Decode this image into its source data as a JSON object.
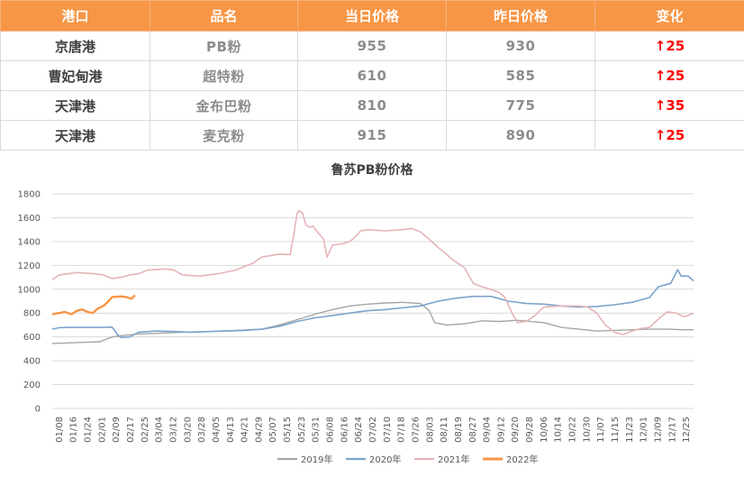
{
  "table": {
    "headers": [
      "港口",
      "品名",
      "当日价格",
      "昨日价格",
      "变化"
    ],
    "rows": [
      {
        "port": "京唐港",
        "product": "PB粉",
        "today": "955",
        "yesterday": "930",
        "change": "↑25"
      },
      {
        "port": "曹妃甸港",
        "product": "超特粉",
        "today": "610",
        "yesterday": "585",
        "change": "↑25"
      },
      {
        "port": "天津港",
        "product": "金布巴粉",
        "today": "810",
        "yesterday": "775",
        "change": "↑35"
      },
      {
        "port": "天津港",
        "product": "麦克粉",
        "today": "915",
        "yesterday": "890",
        "change": "↑25"
      }
    ]
  },
  "chart_data": {
    "type": "line",
    "title": "鲁苏PB粉价格",
    "xlabel": "",
    "ylabel": "",
    "ylim": [
      0,
      1800
    ],
    "yticks": [
      0,
      200,
      400,
      600,
      800,
      1000,
      1200,
      1400,
      1600,
      1800
    ],
    "x_day_range": [
      1,
      365
    ],
    "xticks": [
      "01/08",
      "01/16",
      "01/24",
      "02/01",
      "02/09",
      "02/17",
      "02/25",
      "03/04",
      "03/12",
      "03/20",
      "03/28",
      "04/05",
      "04/13",
      "04/21",
      "04/29",
      "05/07",
      "05/15",
      "05/23",
      "05/31",
      "06/08",
      "06/16",
      "06/24",
      "07/02",
      "07/10",
      "07/18",
      "07/26",
      "08/03",
      "08/11",
      "08/19",
      "08/27",
      "09/04",
      "09/12",
      "09/20",
      "09/28",
      "10/06",
      "10/14",
      "10/22",
      "10/30",
      "11/07",
      "11/15",
      "11/23",
      "12/01",
      "12/09",
      "12/17",
      "12/25"
    ],
    "grid": "horizontal",
    "legend_position": "bottom",
    "series": [
      {
        "name": "2019年",
        "color": "#a5a5a5",
        "width": 1.4,
        "points": [
          [
            1,
            545
          ],
          [
            10,
            550
          ],
          [
            20,
            555
          ],
          [
            28,
            560
          ],
          [
            35,
            600
          ],
          [
            40,
            610
          ],
          [
            50,
            625
          ],
          [
            60,
            630
          ],
          [
            75,
            640
          ],
          [
            90,
            645
          ],
          [
            105,
            655
          ],
          [
            120,
            665
          ],
          [
            130,
            700
          ],
          [
            140,
            745
          ],
          [
            150,
            790
          ],
          [
            160,
            830
          ],
          [
            170,
            860
          ],
          [
            180,
            875
          ],
          [
            190,
            885
          ],
          [
            200,
            890
          ],
          [
            210,
            880
          ],
          [
            215,
            820
          ],
          [
            218,
            720
          ],
          [
            225,
            700
          ],
          [
            235,
            710
          ],
          [
            245,
            735
          ],
          [
            255,
            730
          ],
          [
            265,
            740
          ],
          [
            280,
            720
          ],
          [
            290,
            680
          ],
          [
            300,
            665
          ],
          [
            310,
            650
          ],
          [
            320,
            655
          ],
          [
            330,
            660
          ],
          [
            340,
            665
          ],
          [
            350,
            665
          ],
          [
            360,
            660
          ],
          [
            365,
            660
          ]
        ]
      },
      {
        "name": "2020年",
        "color": "#7ba3cc",
        "width": 1.6,
        "points": [
          [
            1,
            665
          ],
          [
            5,
            678
          ],
          [
            10,
            680
          ],
          [
            20,
            680
          ],
          [
            30,
            680
          ],
          [
            35,
            682
          ],
          [
            38,
            620
          ],
          [
            40,
            595
          ],
          [
            45,
            600
          ],
          [
            50,
            640
          ],
          [
            60,
            650
          ],
          [
            70,
            645
          ],
          [
            80,
            640
          ],
          [
            90,
            645
          ],
          [
            100,
            650
          ],
          [
            110,
            655
          ],
          [
            120,
            665
          ],
          [
            130,
            690
          ],
          [
            140,
            730
          ],
          [
            150,
            760
          ],
          [
            160,
            780
          ],
          [
            170,
            800
          ],
          [
            180,
            820
          ],
          [
            190,
            830
          ],
          [
            200,
            845
          ],
          [
            210,
            860
          ],
          [
            220,
            900
          ],
          [
            230,
            925
          ],
          [
            240,
            940
          ],
          [
            250,
            940
          ],
          [
            260,
            900
          ],
          [
            270,
            880
          ],
          [
            280,
            875
          ],
          [
            290,
            860
          ],
          [
            300,
            850
          ],
          [
            310,
            855
          ],
          [
            320,
            870
          ],
          [
            330,
            890
          ],
          [
            340,
            930
          ],
          [
            345,
            1020
          ],
          [
            352,
            1050
          ],
          [
            356,
            1165
          ],
          [
            358,
            1110
          ],
          [
            362,
            1110
          ],
          [
            365,
            1070
          ]
        ]
      },
      {
        "name": "2021年",
        "color": "#e6b4b8",
        "width": 1.6,
        "points": [
          [
            1,
            1080
          ],
          [
            5,
            1120
          ],
          [
            15,
            1140
          ],
          [
            25,
            1130
          ],
          [
            30,
            1120
          ],
          [
            35,
            1090
          ],
          [
            40,
            1100
          ],
          [
            45,
            1120
          ],
          [
            50,
            1130
          ],
          [
            55,
            1160
          ],
          [
            65,
            1170
          ],
          [
            70,
            1160
          ],
          [
            75,
            1120
          ],
          [
            85,
            1110
          ],
          [
            95,
            1130
          ],
          [
            105,
            1160
          ],
          [
            115,
            1220
          ],
          [
            120,
            1270
          ],
          [
            128,
            1290
          ],
          [
            130,
            1295
          ],
          [
            136,
            1290
          ],
          [
            138,
            1450
          ],
          [
            140,
            1640
          ],
          [
            141,
            1660
          ],
          [
            143,
            1640
          ],
          [
            145,
            1540
          ],
          [
            147,
            1520
          ],
          [
            149,
            1530
          ],
          [
            151,
            1490
          ],
          [
            155,
            1420
          ],
          [
            157,
            1270
          ],
          [
            160,
            1370
          ],
          [
            165,
            1380
          ],
          [
            170,
            1400
          ],
          [
            173,
            1440
          ],
          [
            176,
            1490
          ],
          [
            180,
            1500
          ],
          [
            190,
            1490
          ],
          [
            200,
            1500
          ],
          [
            205,
            1510
          ],
          [
            210,
            1480
          ],
          [
            215,
            1420
          ],
          [
            220,
            1350
          ],
          [
            225,
            1290
          ],
          [
            228,
            1250
          ],
          [
            235,
            1180
          ],
          [
            240,
            1050
          ],
          [
            245,
            1020
          ],
          [
            250,
            1000
          ],
          [
            255,
            970
          ],
          [
            258,
            930
          ],
          [
            262,
            800
          ],
          [
            265,
            720
          ],
          [
            270,
            730
          ],
          [
            275,
            780
          ],
          [
            280,
            850
          ],
          [
            290,
            860
          ],
          [
            300,
            860
          ],
          [
            305,
            850
          ],
          [
            310,
            800
          ],
          [
            315,
            700
          ],
          [
            320,
            640
          ],
          [
            325,
            620
          ],
          [
            330,
            650
          ],
          [
            335,
            670
          ],
          [
            340,
            680
          ],
          [
            345,
            750
          ],
          [
            350,
            810
          ],
          [
            355,
            800
          ],
          [
            360,
            770
          ],
          [
            365,
            800
          ]
        ]
      },
      {
        "name": "2022年",
        "color": "#f79646",
        "width": 2.4,
        "points": [
          [
            1,
            790
          ],
          [
            5,
            800
          ],
          [
            8,
            810
          ],
          [
            12,
            790
          ],
          [
            15,
            820
          ],
          [
            18,
            830
          ],
          [
            21,
            810
          ],
          [
            24,
            800
          ],
          [
            27,
            840
          ],
          [
            30,
            860
          ],
          [
            33,
            900
          ],
          [
            35,
            935
          ],
          [
            40,
            940
          ],
          [
            43,
            935
          ],
          [
            46,
            920
          ],
          [
            48,
            950
          ]
        ]
      }
    ]
  }
}
